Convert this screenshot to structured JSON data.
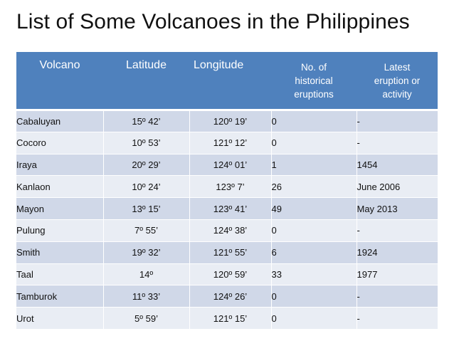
{
  "title": "List of Some Volcanoes in the Philippines",
  "table": {
    "headers": {
      "volcano": "Volcano",
      "latitude": "Latitude",
      "longitude": "Longitude",
      "eruptions_line1": "No. of",
      "eruptions_line2": "historical",
      "eruptions_line3": "eruptions",
      "latest_line1": "Latest",
      "latest_line2": "eruption or",
      "latest_line3": "activity"
    },
    "rows": [
      {
        "volcano": "Cabaluyan",
        "latitude": "15º 42’",
        "longitude": "120º 19’",
        "eruptions": "0",
        "latest": "-"
      },
      {
        "volcano": "Cocoro",
        "latitude": "10º 53’",
        "longitude": "121º 12’",
        "eruptions": "0",
        "latest": "-"
      },
      {
        "volcano": "Iraya",
        "latitude": "20º 29’",
        "longitude": "124º 01’",
        "eruptions": "1",
        "latest": "1454"
      },
      {
        "volcano": "Kanlaon",
        "latitude": "10º 24’",
        "longitude": "123º 7’",
        "eruptions": "26",
        "latest": "June 2006"
      },
      {
        "volcano": "Mayon",
        "latitude": "13º 15’",
        "longitude": "123º 41’",
        "eruptions": "49",
        "latest": "May 2013"
      },
      {
        "volcano": "Pulung",
        "latitude": "7º 55’",
        "longitude": "124º 38’",
        "eruptions": "0",
        "latest": "-"
      },
      {
        "volcano": "Smith",
        "latitude": "19º 32’",
        "longitude": "121º 55’",
        "eruptions": "6",
        "latest": "1924"
      },
      {
        "volcano": "Taal",
        "latitude": "14º",
        "longitude": "120º 59’",
        "eruptions": "33",
        "latest": "1977"
      },
      {
        "volcano": "Tamburok",
        "latitude": "11º 33’",
        "longitude": "124º 26’",
        "eruptions": "0",
        "latest": "-"
      },
      {
        "volcano": "Urot",
        "latitude": "5º 59’",
        "longitude": "121º 15’",
        "eruptions": "0",
        "latest": "-"
      }
    ]
  }
}
